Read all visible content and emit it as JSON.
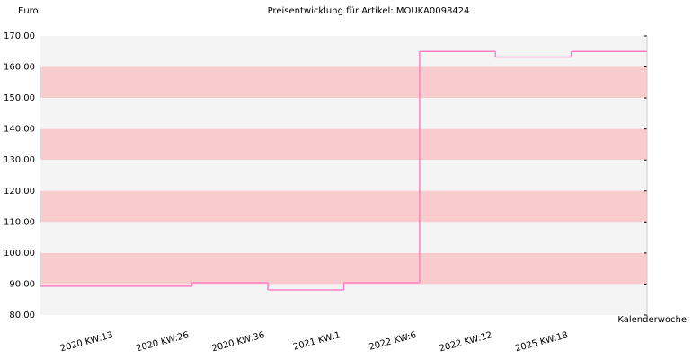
{
  "chart_data": {
    "type": "step",
    "title": "Preisentwicklung für Artikel: MOUKA0098424",
    "y_label": "Euro",
    "x_label": "Kalenderwoche",
    "categories": [
      null,
      "2020 KW:13",
      "2020 KW:26",
      "2020 KW:36",
      "2021 KW:1",
      "2022 KW:6",
      "2022 KW:12",
      "2025 KW:18"
    ],
    "values": [
      89.3,
      89.3,
      90.4,
      88.1,
      90.4,
      165,
      163.2,
      165
    ],
    "color": "#ff7fc8",
    "ylim": [
      80,
      170
    ],
    "yticks": [
      {
        "value": 80,
        "label": "80.00"
      },
      {
        "value": 90,
        "label": "90.00"
      },
      {
        "value": 100,
        "label": "100.00"
      },
      {
        "value": 110,
        "label": "110.00"
      },
      {
        "value": 120,
        "label": "120.00"
      },
      {
        "value": 130,
        "label": "130.00"
      },
      {
        "value": 140,
        "label": "140.00"
      },
      {
        "value": 150,
        "label": "150.00"
      },
      {
        "value": 160,
        "label": "160.00"
      },
      {
        "value": 170,
        "label": "170.00"
      }
    ],
    "band_colors": [
      "#f4f4f4",
      "#f8cccc"
    ]
  }
}
